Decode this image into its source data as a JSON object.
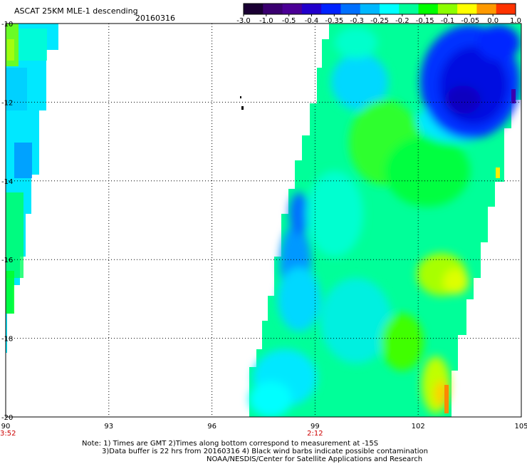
{
  "header": {
    "title": "ASCAT 25KM MLE-1 descending",
    "date": "20160316"
  },
  "colorbar": {
    "labels": [
      "-3.0",
      "-1.0",
      "-0.5",
      "-0.4",
      "-0.35",
      "-0.3",
      "-0.25",
      "-0.2",
      "-0.15",
      "-0.1",
      "-0.05",
      "0.0",
      "1.0"
    ],
    "colors": [
      "#1a0033",
      "#3a0070",
      "#4b0096",
      "#2200cc",
      "#0022ff",
      "#0070ff",
      "#00b8ff",
      "#00ffff",
      "#00ff9a",
      "#00ff00",
      "#8cff00",
      "#ffff00",
      "#ff9900",
      "#ff3300"
    ]
  },
  "map": {
    "lon_ticks": [
      "90",
      "93",
      "96",
      "99",
      "102",
      "105"
    ],
    "lat_ticks": [
      "-10",
      "-12",
      "-14",
      "-16",
      "-18",
      "-20"
    ],
    "time_labels": [
      {
        "text": "3:52",
        "lon": 90
      },
      {
        "text": "2:12",
        "lon": 99
      }
    ],
    "lon_range": [
      90,
      105
    ],
    "lat_range": [
      -10,
      -20
    ],
    "grid": true,
    "colors": {
      "time_label": "#cc0000",
      "grid": "#000000"
    }
  },
  "notes": [
    "Note: 1) Times are GMT 2)Times along bottom correspond to measurement at -15S",
    "3)Data buffer is 22 hrs from 20160316 4) Black wind barbs indicate possible contamination",
    "NOAA/NESDIS/Center for Satellite Applications and Research"
  ]
}
